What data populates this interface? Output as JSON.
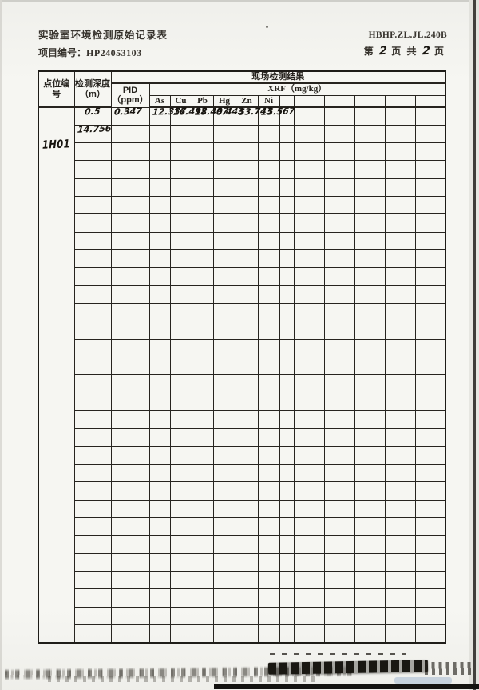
{
  "page": {
    "title": "实验室环境检测原始记录表",
    "project_label": "项目编号：",
    "project_number": "HP24053103",
    "form_code": "HBHP.ZL.JL.240B",
    "page_word_1": "第",
    "page_current": "2",
    "page_word_2": "页 共",
    "page_total": "2",
    "page_word_3": "页"
  },
  "table": {
    "headers": {
      "point_id": "点位编号",
      "depth": "检测深度（m）",
      "site_results": "现场检测结果",
      "pid_line1": "PID",
      "pid_line2": "（ppm）",
      "xrf": "XRF（mg/kg）",
      "elements": [
        "As",
        "Cu",
        "Pb",
        "Hg",
        "Zn",
        "Ni"
      ]
    },
    "handwritten": {
      "point_id": "1H01",
      "rows": [
        {
          "depth": "0.5",
          "pid": "0.347",
          "values": [
            "12.337",
            "16.492",
            "18.497",
            "0.443",
            "53.743",
            "15.567"
          ]
        },
        {
          "depth": "14.756",
          "pid": "",
          "values": [
            "",
            "",
            "",
            "",
            "",
            ""
          ]
        }
      ]
    },
    "layout": {
      "total_data_rows": 30,
      "blank_columns_after_ni": 6
    }
  }
}
